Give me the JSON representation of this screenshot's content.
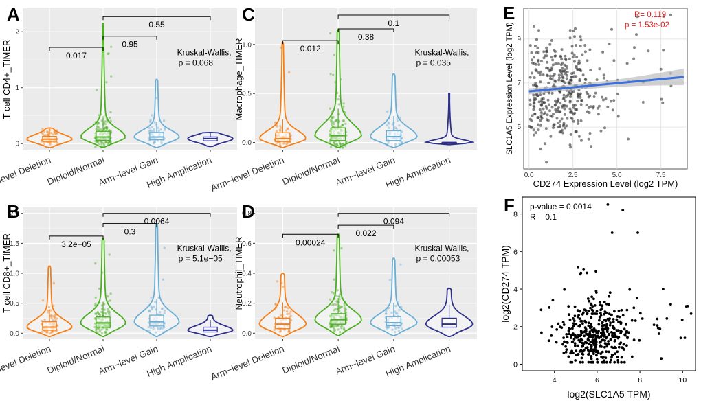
{
  "colors": {
    "arm_deletion": "#f57f17",
    "diploid": "#4caf23",
    "arm_gain": "#6aaed6",
    "high_amp": "#2c2f8c",
    "fit_line": "#3a6fe0",
    "ci_band": "#bdbdbd",
    "panel_bg": "#ebebeb",
    "corr_text": "#e41a1c"
  },
  "categories": [
    "Arm−level Deletion",
    "Diploid/Normal",
    "Arm−level Gain",
    "High Amplication"
  ],
  "chart_data": [
    {
      "panel": "A",
      "type": "violin",
      "ylabel": "T cell CD4+_TIMER",
      "ylim": [
        -0.12,
        2.42
      ],
      "yticks": [
        0,
        1,
        2
      ],
      "ytick_labels": [
        "0",
        "1",
        "2"
      ],
      "groups": [
        {
          "category": "Arm−level Deletion",
          "q1": 0.04,
          "median": 0.08,
          "q3": 0.13,
          "max": 0.28
        },
        {
          "category": "Diploid/Normal",
          "q1": 0.06,
          "median": 0.12,
          "q3": 0.22,
          "max": 2.15
        },
        {
          "category": "Arm−level Gain",
          "q1": 0.07,
          "median": 0.12,
          "q3": 0.2,
          "max": 1.15
        },
        {
          "category": "High Amplication",
          "q1": 0.05,
          "median": 0.09,
          "q3": 0.12,
          "max": 0.2
        }
      ],
      "comparisons": [
        {
          "pair": [
            0,
            1
          ],
          "label": "0.017",
          "y": 1.72
        },
        {
          "pair": [
            1,
            2
          ],
          "label": "0.95",
          "y": 1.92
        },
        {
          "pair": [
            1,
            3
          ],
          "label": "0.55",
          "y": 2.27
        }
      ],
      "test": {
        "line1": "Kruskal-Wallis,",
        "line2": "p = 0.068"
      }
    },
    {
      "panel": "B",
      "type": "violin",
      "ylabel": "T cell CD8+_TIMER",
      "ylim": [
        -0.1,
        2.1
      ],
      "yticks": [
        0,
        0.5,
        1,
        1.5,
        2
      ],
      "ytick_labels": [
        "0.0",
        "0.5",
        "1.0",
        "1.5",
        "2.0"
      ],
      "groups": [
        {
          "category": "Arm−level Deletion",
          "q1": 0.05,
          "median": 0.1,
          "q3": 0.19,
          "max": 1.12
        },
        {
          "category": "Diploid/Normal",
          "q1": 0.1,
          "median": 0.17,
          "q3": 0.27,
          "max": 1.58
        },
        {
          "category": "Arm−level Gain",
          "q1": 0.12,
          "median": 0.19,
          "q3": 0.3,
          "max": 1.82
        },
        {
          "category": "High Amplication",
          "q1": 0.02,
          "median": 0.05,
          "q3": 0.1,
          "max": 0.3
        }
      ],
      "comparisons": [
        {
          "pair": [
            0,
            1
          ],
          "label": "3.2e−05",
          "y": 1.62
        },
        {
          "pair": [
            1,
            2
          ],
          "label": "0.3",
          "y": 1.83
        },
        {
          "pair": [
            1,
            3
          ],
          "label": "0.0064",
          "y": 2.0
        }
      ],
      "test": {
        "line1": "Kruskal-Wallis,",
        "line2": "p = 5.1e−05"
      }
    },
    {
      "panel": "C",
      "type": "violin",
      "ylabel": "Macrophage_TIMER",
      "ylim": [
        -0.08,
        1.37
      ],
      "yticks": [
        0,
        0.5,
        1
      ],
      "ytick_labels": [
        "0.0",
        "0.5",
        "1.0"
      ],
      "groups": [
        {
          "category": "Arm−level Deletion",
          "q1": 0.01,
          "median": 0.04,
          "q3": 0.1,
          "max": 1.02
        },
        {
          "category": "Diploid/Normal",
          "q1": 0.02,
          "median": 0.07,
          "q3": 0.15,
          "max": 1.15
        },
        {
          "category": "Arm−level Gain",
          "q1": 0.02,
          "median": 0.06,
          "q3": 0.12,
          "max": 0.7
        },
        {
          "category": "High Amplication",
          "q1": 0.0,
          "median": 0.0,
          "q3": 0.0,
          "max": 0.5
        }
      ],
      "comparisons": [
        {
          "pair": [
            0,
            1
          ],
          "label": "0.012",
          "y": 1.04
        },
        {
          "pair": [
            1,
            2
          ],
          "label": "0.38",
          "y": 1.16
        },
        {
          "pair": [
            1,
            3
          ],
          "label": "0.1",
          "y": 1.3
        }
      ],
      "test": {
        "line1": "Kruskal-Wallis,",
        "line2": "p = 0.035"
      }
    },
    {
      "panel": "D",
      "type": "violin",
      "ylabel": "Neutrophil_TIMER",
      "ylim": [
        -0.04,
        0.84
      ],
      "yticks": [
        0,
        0.2,
        0.4,
        0.6,
        0.8
      ],
      "ytick_labels": [
        "0.0",
        "0.2",
        "0.4",
        "0.6",
        "0.8"
      ],
      "groups": [
        {
          "category": "Arm−level Deletion",
          "q1": 0.03,
          "median": 0.06,
          "q3": 0.1,
          "max": 0.4
        },
        {
          "category": "Diploid/Normal",
          "q1": 0.06,
          "median": 0.09,
          "q3": 0.13,
          "max": 0.66
        },
        {
          "category": "Arm−level Gain",
          "q1": 0.05,
          "median": 0.07,
          "q3": 0.11,
          "max": 0.5
        },
        {
          "category": "High Amplication",
          "q1": 0.04,
          "median": 0.06,
          "q3": 0.1,
          "max": 0.3
        }
      ],
      "comparisons": [
        {
          "pair": [
            0,
            1
          ],
          "label": "0.00024",
          "y": 0.66
        },
        {
          "pair": [
            1,
            2
          ],
          "label": "0.022",
          "y": 0.72
        },
        {
          "pair": [
            1,
            3
          ],
          "label": "0.094",
          "y": 0.8
        }
      ],
      "test": {
        "line1": "Kruskal-Wallis,",
        "line2": "p = 0.00053"
      }
    },
    {
      "panel": "E",
      "type": "scatter",
      "xlabel": "CD274 Expression Level (log2 TPM)",
      "ylabel": "SLC1A5 Expression Level (log2 TPM)",
      "xlim": [
        -0.3,
        9.0
      ],
      "ylim": [
        3.1,
        10.4
      ],
      "xticks": [
        0,
        2.5,
        5,
        7.5
      ],
      "xtick_labels": [
        "0.0",
        "2.5",
        "5.0",
        "7.5"
      ],
      "yticks": [
        5,
        7,
        9
      ],
      "ytick_labels": [
        "5",
        "7",
        "9"
      ],
      "n_points": 420,
      "fit": {
        "x0": 0.0,
        "y0": 6.62,
        "x1": 8.8,
        "y1": 7.28
      },
      "annotation": {
        "line1": "R= 0.119",
        "line2": "p = 1.53e-02"
      }
    },
    {
      "panel": "F",
      "type": "scatter",
      "xlabel": "log2(SLC1A5 TPM)",
      "ylabel": "log2(CD274 TPM)",
      "xlim": [
        2.5,
        10.6
      ],
      "ylim": [
        -0.35,
        8.9
      ],
      "xticks": [
        4,
        6,
        8,
        10
      ],
      "xtick_labels": [
        "4",
        "6",
        "8",
        "10"
      ],
      "yticks": [
        0,
        2,
        4,
        6,
        8
      ],
      "ytick_labels": [
        "0",
        "2",
        "4",
        "6",
        "8"
      ],
      "n_points": 430,
      "annotation": {
        "line1": "p-value = 0.0014",
        "line2": "R = 0.1"
      }
    }
  ]
}
